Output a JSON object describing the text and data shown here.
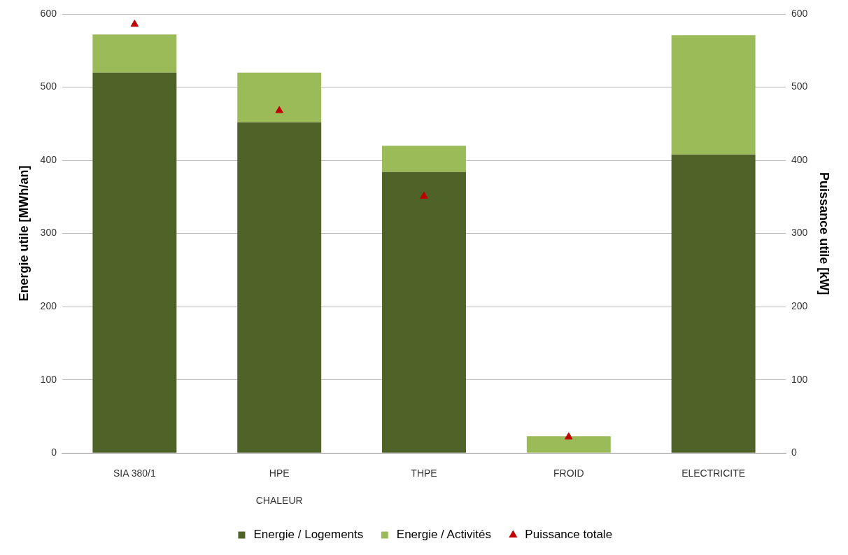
{
  "chart_data": {
    "type": "bar",
    "stacked": true,
    "categories": [
      "SIA 380/1",
      "HPE",
      "THPE",
      "FROID",
      "ELECTRICITE"
    ],
    "series": [
      {
        "name": "Energie / Logements",
        "color": "#4f6228",
        "values": [
          520,
          452,
          384,
          0,
          408
        ]
      },
      {
        "name": "Energie / Activités",
        "color": "#9bbb59",
        "values": [
          52,
          68,
          36,
          23,
          163
        ]
      },
      {
        "name": "Puissance totale",
        "type": "scatter",
        "axis": "y2",
        "marker": "triangle",
        "color": "#c00000",
        "values": [
          586,
          468,
          351,
          22,
          null
        ]
      }
    ],
    "ylabel": "Energie utile [MWh/an]",
    "y2label": "Puissance utile [kW]",
    "ylim": [
      0,
      600
    ],
    "yticks": [
      0,
      100,
      200,
      300,
      400,
      500,
      600
    ],
    "y2lim": [
      0,
      600
    ],
    "y2ticks": [
      0,
      100,
      200,
      300,
      400,
      500,
      600
    ],
    "grid": "y",
    "legend": "bottom",
    "annotations": [
      "CHALEUR"
    ]
  }
}
